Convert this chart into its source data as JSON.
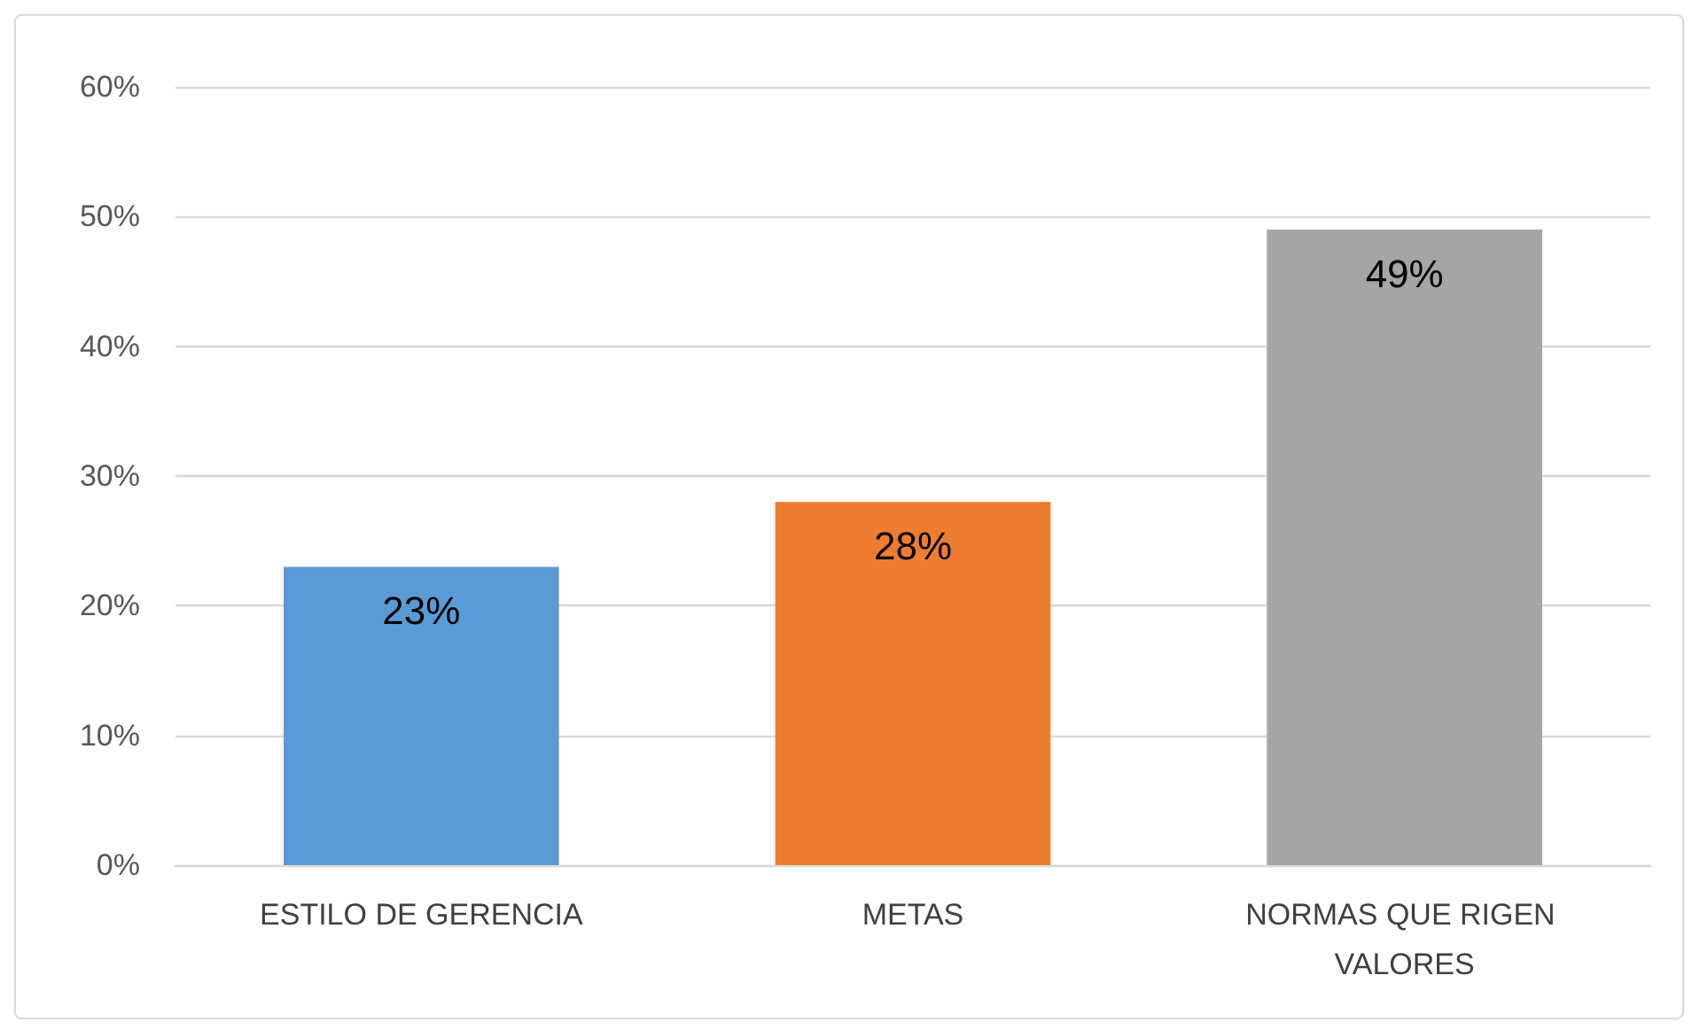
{
  "chart_data": {
    "type": "bar",
    "categories": [
      "ESTILO DE GERENCIA",
      "METAS",
      "NORMAS QUE RIGEN VALORES"
    ],
    "values": [
      23,
      28,
      49
    ],
    "colors": [
      "#5b9bd5",
      "#ed7d31",
      "#a5a5a5"
    ],
    "value_labels": [
      "23%",
      "28%",
      "49%"
    ],
    "ylim": [
      0,
      60
    ],
    "yticks": [
      {
        "value": 0,
        "label": "0%"
      },
      {
        "value": 10,
        "label": "10%"
      },
      {
        "value": 20,
        "label": "20%"
      },
      {
        "value": 30,
        "label": "30%"
      },
      {
        "value": 40,
        "label": "40%"
      },
      {
        "value": 50,
        "label": "50%"
      },
      {
        "value": 60,
        "label": "60%"
      }
    ],
    "grid": true
  }
}
